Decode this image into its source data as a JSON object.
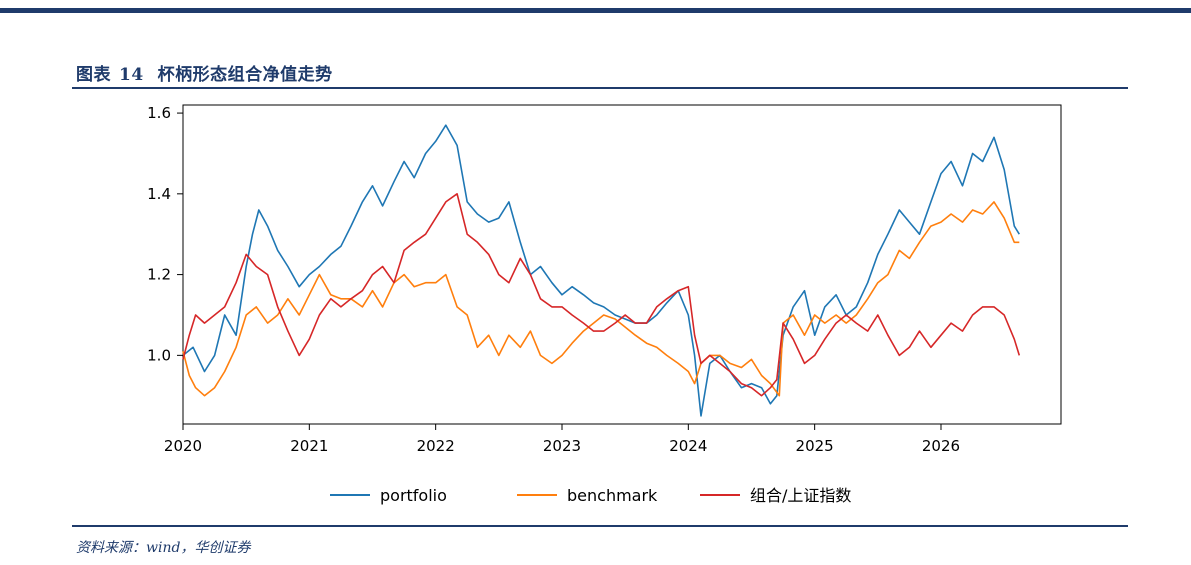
{
  "figure": {
    "label": "图表",
    "number": "14",
    "title": "杯柄形态组合净值走势",
    "source": "资料来源：wind，华创证券"
  },
  "chart_data": {
    "type": "line",
    "title": "",
    "xlabel": "",
    "ylabel": "",
    "xlim": [
      2020,
      2026.95
    ],
    "ylim": [
      0.83,
      1.62
    ],
    "x_ticks": [
      2020,
      2021,
      2022,
      2023,
      2024,
      2025,
      2026
    ],
    "x_tick_labels": [
      "2020",
      "2021",
      "2022",
      "2023",
      "2024",
      "2025",
      "2026"
    ],
    "y_ticks": [
      1.0,
      1.2,
      1.4,
      1.6
    ],
    "y_tick_labels": [
      "1.0",
      "1.2",
      "1.4",
      "1.6"
    ],
    "grid": false,
    "legend": {
      "position": "bottom-center",
      "columns": 3
    },
    "series": [
      {
        "name": "portfolio",
        "color": "#1f77b4",
        "x": [
          2020.0,
          2020.08,
          2020.17,
          2020.25,
          2020.33,
          2020.42,
          2020.5,
          2020.55,
          2020.6,
          2020.67,
          2020.75,
          2020.83,
          2020.92,
          2021.0,
          2021.08,
          2021.17,
          2021.25,
          2021.33,
          2021.42,
          2021.5,
          2021.58,
          2021.67,
          2021.75,
          2021.83,
          2021.92,
          2022.0,
          2022.08,
          2022.17,
          2022.25,
          2022.33,
          2022.42,
          2022.5,
          2022.58,
          2022.67,
          2022.75,
          2022.83,
          2022.92,
          2023.0,
          2023.08,
          2023.17,
          2023.25,
          2023.33,
          2023.42,
          2023.5,
          2023.58,
          2023.67,
          2023.75,
          2023.83,
          2023.92,
          2024.0,
          2024.05,
          2024.1,
          2024.17,
          2024.25,
          2024.33,
          2024.42,
          2024.5,
          2024.58,
          2024.65,
          2024.7,
          2024.75,
          2024.83,
          2024.92,
          2025.0,
          2025.08,
          2025.17,
          2025.25,
          2025.33,
          2025.42,
          2025.5,
          2025.58,
          2025.67,
          2025.75,
          2025.83,
          2025.92,
          2026.0,
          2026.08,
          2026.17,
          2026.25,
          2026.33,
          2026.42,
          2026.5,
          2026.58,
          2026.62
        ],
        "values": [
          1.0,
          1.02,
          0.96,
          1.0,
          1.1,
          1.05,
          1.22,
          1.3,
          1.36,
          1.32,
          1.26,
          1.22,
          1.17,
          1.2,
          1.22,
          1.25,
          1.27,
          1.32,
          1.38,
          1.42,
          1.37,
          1.43,
          1.48,
          1.44,
          1.5,
          1.53,
          1.57,
          1.52,
          1.38,
          1.35,
          1.33,
          1.34,
          1.38,
          1.28,
          1.2,
          1.22,
          1.18,
          1.15,
          1.17,
          1.15,
          1.13,
          1.12,
          1.1,
          1.09,
          1.08,
          1.08,
          1.1,
          1.13,
          1.16,
          1.1,
          1.0,
          0.85,
          0.98,
          1.0,
          0.96,
          0.92,
          0.93,
          0.92,
          0.88,
          0.9,
          1.05,
          1.12,
          1.16,
          1.05,
          1.12,
          1.15,
          1.1,
          1.12,
          1.18,
          1.25,
          1.3,
          1.36,
          1.33,
          1.3,
          1.38,
          1.45,
          1.48,
          1.42,
          1.5,
          1.48,
          1.54,
          1.46,
          1.32,
          1.3
        ]
      },
      {
        "name": "benchmark",
        "color": "#ff7f0e",
        "x": [
          2020.0,
          2020.05,
          2020.1,
          2020.17,
          2020.25,
          2020.33,
          2020.42,
          2020.5,
          2020.58,
          2020.67,
          2020.75,
          2020.83,
          2020.92,
          2021.0,
          2021.08,
          2021.17,
          2021.25,
          2021.33,
          2021.42,
          2021.5,
          2021.58,
          2021.67,
          2021.75,
          2021.83,
          2021.92,
          2022.0,
          2022.08,
          2022.17,
          2022.25,
          2022.33,
          2022.42,
          2022.5,
          2022.58,
          2022.67,
          2022.75,
          2022.83,
          2022.92,
          2023.0,
          2023.08,
          2023.17,
          2023.25,
          2023.33,
          2023.42,
          2023.5,
          2023.58,
          2023.67,
          2023.75,
          2023.83,
          2023.92,
          2024.0,
          2024.05,
          2024.1,
          2024.17,
          2024.25,
          2024.33,
          2024.42,
          2024.5,
          2024.58,
          2024.65,
          2024.72,
          2024.75,
          2024.83,
          2024.92,
          2025.0,
          2025.08,
          2025.17,
          2025.25,
          2025.33,
          2025.42,
          2025.5,
          2025.58,
          2025.67,
          2025.75,
          2025.83,
          2025.92,
          2026.0,
          2026.08,
          2026.17,
          2026.25,
          2026.33,
          2026.42,
          2026.5,
          2026.58,
          2026.62
        ],
        "values": [
          1.01,
          0.95,
          0.92,
          0.9,
          0.92,
          0.96,
          1.02,
          1.1,
          1.12,
          1.08,
          1.1,
          1.14,
          1.1,
          1.15,
          1.2,
          1.15,
          1.14,
          1.14,
          1.12,
          1.16,
          1.12,
          1.18,
          1.2,
          1.17,
          1.18,
          1.18,
          1.2,
          1.12,
          1.1,
          1.02,
          1.05,
          1.0,
          1.05,
          1.02,
          1.06,
          1.0,
          0.98,
          1.0,
          1.03,
          1.06,
          1.08,
          1.1,
          1.09,
          1.07,
          1.05,
          1.03,
          1.02,
          1.0,
          0.98,
          0.96,
          0.93,
          0.98,
          1.0,
          1.0,
          0.98,
          0.97,
          0.99,
          0.95,
          0.93,
          0.9,
          1.08,
          1.1,
          1.05,
          1.1,
          1.08,
          1.1,
          1.08,
          1.1,
          1.14,
          1.18,
          1.2,
          1.26,
          1.24,
          1.28,
          1.32,
          1.33,
          1.35,
          1.33,
          1.36,
          1.35,
          1.38,
          1.34,
          1.28,
          1.28
        ]
      },
      {
        "name": "组合/上证指数",
        "color": "#d62728",
        "x": [
          2020.0,
          2020.05,
          2020.1,
          2020.17,
          2020.25,
          2020.33,
          2020.42,
          2020.5,
          2020.58,
          2020.67,
          2020.75,
          2020.83,
          2020.92,
          2021.0,
          2021.08,
          2021.17,
          2021.25,
          2021.33,
          2021.42,
          2021.5,
          2021.58,
          2021.67,
          2021.75,
          2021.83,
          2021.92,
          2022.0,
          2022.08,
          2022.17,
          2022.25,
          2022.33,
          2022.42,
          2022.5,
          2022.58,
          2022.67,
          2022.75,
          2022.83,
          2022.92,
          2023.0,
          2023.08,
          2023.17,
          2023.25,
          2023.33,
          2023.42,
          2023.5,
          2023.58,
          2023.67,
          2023.75,
          2023.83,
          2023.92,
          2024.0,
          2024.05,
          2024.1,
          2024.17,
          2024.25,
          2024.33,
          2024.42,
          2024.5,
          2024.58,
          2024.65,
          2024.7,
          2024.75,
          2024.83,
          2024.92,
          2025.0,
          2025.08,
          2025.17,
          2025.25,
          2025.33,
          2025.42,
          2025.5,
          2025.58,
          2025.67,
          2025.75,
          2025.83,
          2025.92,
          2026.0,
          2026.08,
          2026.17,
          2026.25,
          2026.33,
          2026.42,
          2026.5,
          2026.58,
          2026.62
        ],
        "values": [
          0.99,
          1.05,
          1.1,
          1.08,
          1.1,
          1.12,
          1.18,
          1.25,
          1.22,
          1.2,
          1.12,
          1.06,
          1.0,
          1.04,
          1.1,
          1.14,
          1.12,
          1.14,
          1.16,
          1.2,
          1.22,
          1.18,
          1.26,
          1.28,
          1.3,
          1.34,
          1.38,
          1.4,
          1.3,
          1.28,
          1.25,
          1.2,
          1.18,
          1.24,
          1.2,
          1.14,
          1.12,
          1.12,
          1.1,
          1.08,
          1.06,
          1.06,
          1.08,
          1.1,
          1.08,
          1.08,
          1.12,
          1.14,
          1.16,
          1.17,
          1.05,
          0.98,
          1.0,
          0.98,
          0.96,
          0.93,
          0.92,
          0.9,
          0.92,
          0.94,
          1.08,
          1.04,
          0.98,
          1.0,
          1.04,
          1.08,
          1.1,
          1.08,
          1.06,
          1.1,
          1.05,
          1.0,
          1.02,
          1.06,
          1.02,
          1.05,
          1.08,
          1.06,
          1.1,
          1.12,
          1.12,
          1.1,
          1.04,
          1.0
        ]
      }
    ]
  }
}
